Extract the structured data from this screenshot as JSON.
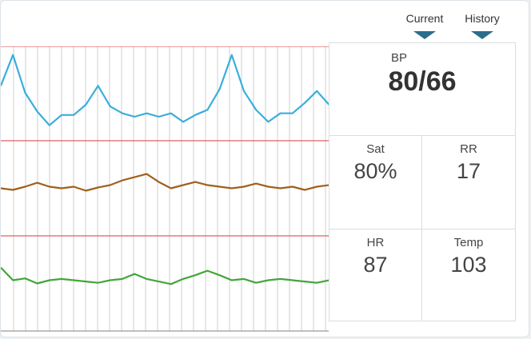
{
  "tabs": [
    {
      "label": "Current"
    },
    {
      "label": "History"
    }
  ],
  "vitals": {
    "bp": {
      "name": "BP",
      "value": "80/66"
    },
    "sat": {
      "name": "Sat",
      "value": "80%"
    },
    "rr": {
      "name": "RR",
      "value": "17"
    },
    "hr": {
      "name": "HR",
      "value": "87"
    },
    "temp": {
      "name": "Temp",
      "value": "103"
    }
  },
  "colors": {
    "bp_line": "#3aaedb",
    "rr_line": "#a0601e",
    "hr_line": "#43a63a",
    "threshold_line": "#e06060",
    "grid": "#cfcfcf",
    "tab_caret": "#2b6d8c"
  },
  "chart_data": {
    "type": "line",
    "x": [
      0,
      1,
      2,
      3,
      4,
      5,
      6,
      7,
      8,
      9,
      10,
      11,
      12,
      13,
      14,
      15,
      16,
      17,
      18,
      19,
      20,
      21,
      22,
      23,
      24,
      25,
      26,
      27
    ],
    "series": [
      {
        "values": [
          72,
          90,
          68,
          57,
          49,
          55,
          55,
          61,
          72,
          60,
          56,
          54,
          56,
          54,
          56,
          51,
          55,
          58,
          70,
          90,
          69,
          58,
          51,
          56,
          56,
          62,
          69,
          61
        ]
      },
      {
        "values": [
          14,
          13.8,
          14.2,
          14.7,
          14.2,
          14,
          14.2,
          13.7,
          14.1,
          14.4,
          15,
          15.4,
          15.8,
          14.8,
          14,
          14.4,
          14.8,
          14.4,
          14.2,
          14,
          14.2,
          14.6,
          14.2,
          14,
          14.2,
          13.8,
          14.2,
          14.4
        ]
      },
      {
        "values": [
          90,
          88,
          88.3,
          87.5,
          88,
          88.2,
          88,
          87.8,
          87.6,
          88,
          88.2,
          89,
          88.2,
          87.8,
          87.4,
          88.2,
          88.8,
          89.5,
          88.8,
          88,
          88.2,
          87.6,
          88,
          88.2,
          88,
          87.8,
          87.6,
          88
        ]
      }
    ],
    "grid": true
  }
}
